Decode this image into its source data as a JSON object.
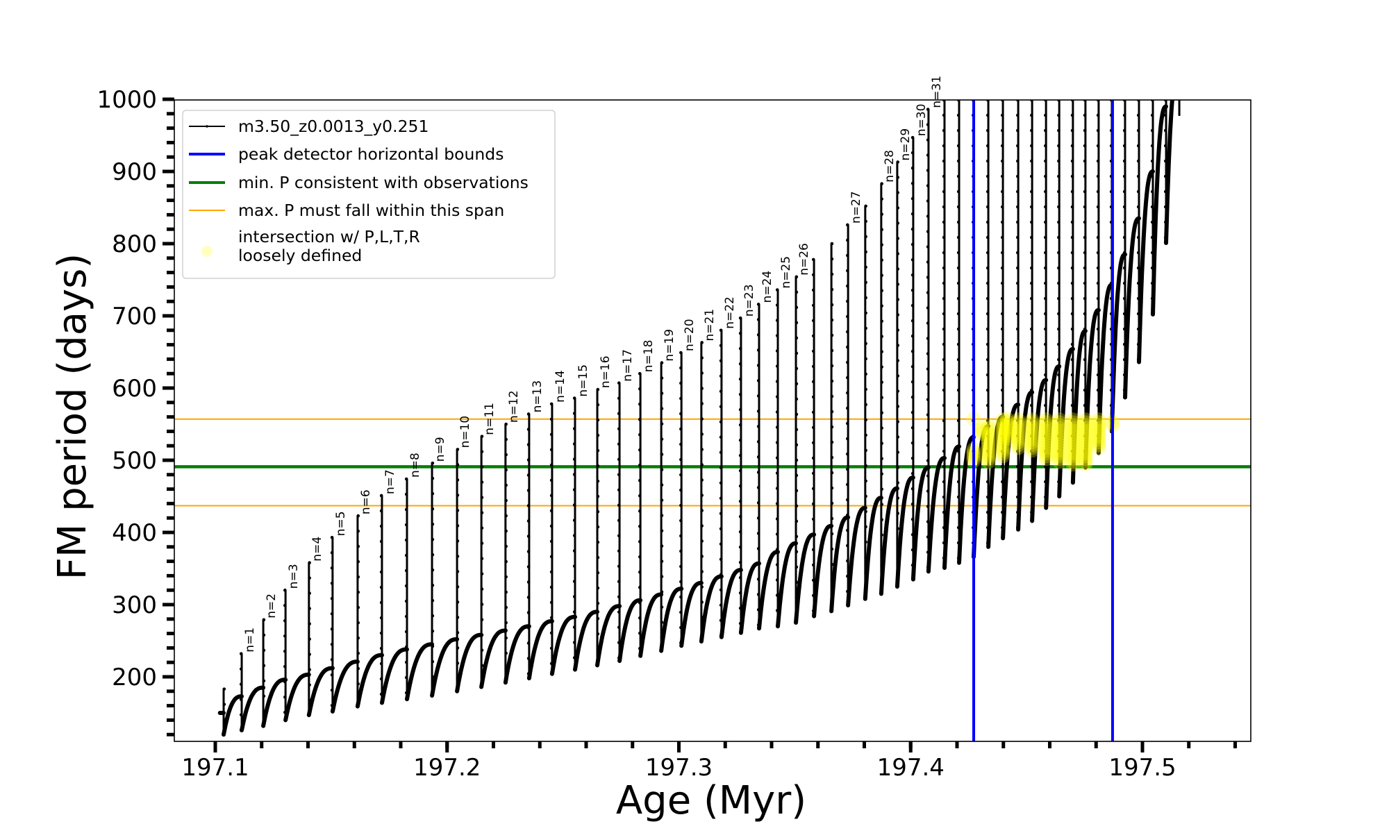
{
  "chart_data": {
    "type": "line",
    "title": "",
    "xlabel": "Age (Myr)",
    "ylabel": "FM period (days)",
    "xlim": [
      197.082,
      197.547
    ],
    "ylim": [
      110.6,
      1000
    ],
    "grid": false,
    "x_ticks": [
      {
        "value": 197.1,
        "label": "197.1"
      },
      {
        "value": 197.2,
        "label": "197.2"
      },
      {
        "value": 197.3,
        "label": "197.3"
      },
      {
        "value": 197.4,
        "label": "197.4"
      },
      {
        "value": 197.5,
        "label": "197.5"
      }
    ],
    "x_minor_step": 0.02,
    "y_ticks": [
      {
        "value": 200,
        "label": "200"
      },
      {
        "value": 300,
        "label": "300"
      },
      {
        "value": 400,
        "label": "400"
      },
      {
        "value": 500,
        "label": "500"
      },
      {
        "value": 600,
        "label": "600"
      },
      {
        "value": 700,
        "label": "700"
      },
      {
        "value": 800,
        "label": "800"
      },
      {
        "value": 900,
        "label": "900"
      },
      {
        "value": 1000,
        "label": "1000"
      }
    ],
    "y_minor_step": 20,
    "legend": {
      "placement": "upper-left",
      "entries": [
        {
          "label": "m3.50_z0.0013_y0.251",
          "kind": "line-marker",
          "color": "#000000"
        },
        {
          "label": "peak detector horizontal bounds",
          "kind": "line",
          "color": "#0000ff"
        },
        {
          "label": "min. P consistent with observations",
          "kind": "line",
          "color": "#008000"
        },
        {
          "label": "max. P must fall within this span",
          "kind": "line",
          "color": "#ffa500"
        },
        {
          "label": "intersection w/ P,L,T,R",
          "label2": "loosely defined",
          "kind": "marker",
          "color": "#ffff00"
        }
      ]
    },
    "series": [
      {
        "name": "m3.50_z0.0013_y0.251",
        "color": "#000000",
        "start": {
          "age": 197.102,
          "value": 150
        },
        "pulses": [
          {
            "age": 197.1036,
            "pre": 150,
            "peak": 183,
            "dip": 120,
            "label": ""
          },
          {
            "age": 197.1114,
            "pre": 173,
            "peak": 232,
            "dip": 126,
            "label": "n=1"
          },
          {
            "age": 197.1207,
            "pre": 185,
            "peak": 279,
            "dip": 132,
            "label": "n=2"
          },
          {
            "age": 197.1303,
            "pre": 196,
            "peak": 320,
            "dip": 140,
            "label": "n=3"
          },
          {
            "age": 197.1404,
            "pre": 203,
            "peak": 358,
            "dip": 147,
            "label": "n=4"
          },
          {
            "age": 197.1506,
            "pre": 212,
            "peak": 393,
            "dip": 152,
            "label": "n=5"
          },
          {
            "age": 197.1614,
            "pre": 221,
            "peak": 423,
            "dip": 159,
            "label": "n=6"
          },
          {
            "age": 197.1719,
            "pre": 230,
            "peak": 451,
            "dip": 164,
            "label": "n=7"
          },
          {
            "age": 197.1827,
            "pre": 238,
            "peak": 474,
            "dip": 169,
            "label": "n=8"
          },
          {
            "age": 197.1935,
            "pre": 245,
            "peak": 496,
            "dip": 174,
            "label": "n=9"
          },
          {
            "age": 197.2043,
            "pre": 252,
            "peak": 515,
            "dip": 180,
            "label": "n=10"
          },
          {
            "age": 197.2148,
            "pre": 258,
            "peak": 533,
            "dip": 186,
            "label": "n=11"
          },
          {
            "age": 197.2252,
            "pre": 264,
            "peak": 550,
            "dip": 192,
            "label": "n=12"
          },
          {
            "age": 197.2354,
            "pre": 270,
            "peak": 564,
            "dip": 198,
            "label": "n=13"
          },
          {
            "age": 197.2453,
            "pre": 277,
            "peak": 578,
            "dip": 204,
            "label": "n=14"
          },
          {
            "age": 197.2552,
            "pre": 283,
            "peak": 586,
            "dip": 210,
            "label": "n=15"
          },
          {
            "age": 197.2648,
            "pre": 290,
            "peak": 598,
            "dip": 216,
            "label": "n=16"
          },
          {
            "age": 197.2744,
            "pre": 298,
            "peak": 607,
            "dip": 222,
            "label": "n=17"
          },
          {
            "age": 197.2834,
            "pre": 306,
            "peak": 620,
            "dip": 229,
            "label": "n=18"
          },
          {
            "age": 197.2924,
            "pre": 314,
            "peak": 635,
            "dip": 236,
            "label": "n=19"
          },
          {
            "age": 197.3011,
            "pre": 322,
            "peak": 649,
            "dip": 243,
            "label": "n=20"
          },
          {
            "age": 197.3097,
            "pre": 330,
            "peak": 663,
            "dip": 249,
            "label": "n=21"
          },
          {
            "age": 197.3184,
            "pre": 339,
            "peak": 680,
            "dip": 255,
            "label": "n=22"
          },
          {
            "age": 197.3268,
            "pre": 348,
            "peak": 697,
            "dip": 261,
            "label": "n=23"
          },
          {
            "age": 197.3346,
            "pre": 357,
            "peak": 716,
            "dip": 267,
            "label": "n=24"
          },
          {
            "age": 197.3427,
            "pre": 373,
            "peak": 736,
            "dip": 270,
            "label": "n=25"
          },
          {
            "age": 197.3505,
            "pre": 385,
            "peak": 754,
            "dip": 275,
            "label": "n=26"
          },
          {
            "age": 197.3583,
            "pre": 397,
            "peak": 778,
            "dip": 284,
            "label": ""
          },
          {
            "age": 197.3658,
            "pre": 409,
            "peak": 800,
            "dip": 291,
            "label": ""
          },
          {
            "age": 197.373,
            "pre": 421,
            "peak": 826,
            "dip": 299,
            "label": "n=27"
          },
          {
            "age": 197.3804,
            "pre": 434,
            "peak": 852,
            "dip": 308,
            "label": ""
          },
          {
            "age": 197.3873,
            "pre": 448,
            "peak": 883,
            "dip": 315,
            "label": "n=28"
          },
          {
            "age": 197.3942,
            "pre": 461,
            "peak": 913,
            "dip": 325,
            "label": "n=29"
          },
          {
            "age": 197.4011,
            "pre": 476,
            "peak": 947,
            "dip": 335,
            "label": "n=30"
          },
          {
            "age": 197.4077,
            "pre": 490,
            "peak": 986,
            "dip": 346,
            "label": "n=31"
          },
          {
            "age": 197.4146,
            "pre": 503,
            "peak": null,
            "dip": 351,
            "label": ""
          },
          {
            "age": 197.4209,
            "pre": 519,
            "peak": null,
            "dip": 358,
            "label": ""
          },
          {
            "age": 197.4272,
            "pre": 532,
            "peak": null,
            "dip": 366,
            "label": ""
          },
          {
            "age": 197.4335,
            "pre": 547,
            "peak": null,
            "dip": 380,
            "label": ""
          },
          {
            "age": 197.4398,
            "pre": 560,
            "peak": null,
            "dip": 392,
            "label": ""
          },
          {
            "age": 197.4464,
            "pre": 577,
            "peak": null,
            "dip": 404,
            "label": ""
          },
          {
            "age": 197.4524,
            "pre": 594,
            "peak": null,
            "dip": 416,
            "label": ""
          },
          {
            "age": 197.4584,
            "pre": 611,
            "peak": null,
            "dip": 434,
            "label": ""
          },
          {
            "age": 197.4641,
            "pre": 630,
            "peak": null,
            "dip": 450,
            "label": ""
          },
          {
            "age": 197.47,
            "pre": 654,
            "peak": null,
            "dip": 469,
            "label": ""
          },
          {
            "age": 197.4754,
            "pre": 679,
            "peak": null,
            "dip": 490,
            "label": ""
          },
          {
            "age": 197.4811,
            "pre": 708,
            "peak": null,
            "dip": 510,
            "label": ""
          },
          {
            "age": 197.4868,
            "pre": 743,
            "peak": null,
            "dip": 540,
            "label": ""
          },
          {
            "age": 197.4925,
            "pre": 785,
            "peak": null,
            "dip": 587,
            "label": ""
          },
          {
            "age": 197.4985,
            "pre": 835,
            "peak": null,
            "dip": 636,
            "label": ""
          },
          {
            "age": 197.5045,
            "pre": 900,
            "peak": null,
            "dip": 702,
            "label": ""
          },
          {
            "age": 197.5102,
            "pre": 990,
            "peak": null,
            "dip": 801,
            "label": ""
          }
        ],
        "tail": {
          "age": 197.5159,
          "from": 1000,
          "to": 977
        }
      }
    ],
    "vlines": [
      {
        "name": "peak detector horizontal bounds",
        "x": 197.4272,
        "color": "#0000ff"
      },
      {
        "name": "peak detector horizontal bounds",
        "x": 197.4871,
        "color": "#0000ff"
      }
    ],
    "hlines": [
      {
        "name": "min. P consistent with observations",
        "y": 491,
        "color": "#008000"
      },
      {
        "name": "max. P must fall within this span",
        "y": 557,
        "color": "#ffa500"
      },
      {
        "name": "max. P must fall within this span",
        "y": 437,
        "color": "#ffa500"
      }
    ],
    "intersections": {
      "color": "#ffff00",
      "segments": [
        {
          "age": 197.4272,
          "pmin": 496,
          "pmax": 515
        },
        {
          "age": 197.4272,
          "pmin": 557,
          "pmax": 557
        },
        {
          "age": 197.4305,
          "pmin": 537,
          "pmax": 545
        },
        {
          "age": 197.4335,
          "pmin": 496,
          "pmax": 548
        },
        {
          "age": 197.4398,
          "pmin": 505,
          "pmax": 556
        },
        {
          "age": 197.4416,
          "pmin": 527,
          "pmax": 557
        },
        {
          "age": 197.4464,
          "pmin": 516,
          "pmax": 556
        },
        {
          "age": 197.4524,
          "pmin": 510,
          "pmax": 556
        },
        {
          "age": 197.4584,
          "pmin": 502,
          "pmax": 556
        },
        {
          "age": 197.4641,
          "pmin": 497,
          "pmax": 556
        },
        {
          "age": 197.47,
          "pmin": 492,
          "pmax": 556
        },
        {
          "age": 197.4754,
          "pmin": 491,
          "pmax": 556
        },
        {
          "age": 197.4811,
          "pmin": 514,
          "pmax": 556
        },
        {
          "age": 197.4871,
          "pmin": 549,
          "pmax": 553
        }
      ]
    }
  }
}
